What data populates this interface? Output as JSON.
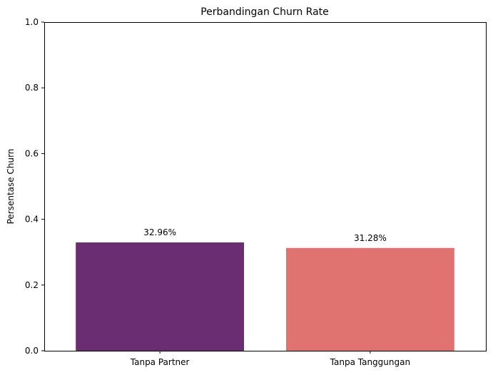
{
  "chart_data": {
    "type": "bar",
    "title": "Perbandingan Churn Rate",
    "xlabel": "",
    "ylabel": "Persentase Churn",
    "categories": [
      "Tanpa Partner",
      "Tanpa Tanggungan"
    ],
    "values": [
      0.3296,
      0.3128
    ],
    "value_labels": [
      "32.96%",
      "31.28%"
    ],
    "colors": [
      "#6b2d71",
      "#e07270"
    ],
    "ylim": [
      0,
      1
    ],
    "yticks": [
      "0.0",
      "0.2",
      "0.4",
      "0.6",
      "0.8",
      "1.0"
    ],
    "grid": false,
    "legend": false
  }
}
